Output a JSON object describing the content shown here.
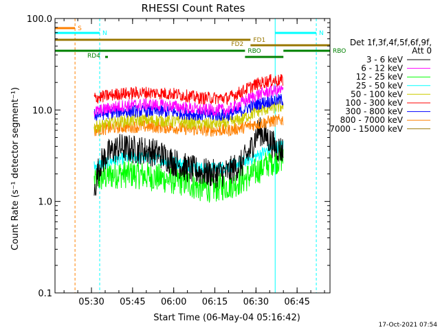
{
  "chart_data": {
    "type": "line",
    "title": "RHESSI Count Rates",
    "xlabel": "Start Time (06-May-04 05:16:42)",
    "ylabel": "Count Rate (s⁻¹ detector segment⁻¹)",
    "y_scale": "log",
    "ylim": [
      0.1,
      100
    ],
    "xlim": [
      "05:16:42",
      "06:57:00"
    ],
    "x_ticks": [
      "05:30",
      "05:45",
      "06:00",
      "06:15",
      "06:30",
      "06:45"
    ],
    "y_ticks": [
      "0.1",
      "1.0",
      "10.0",
      "100.0"
    ],
    "grid": false,
    "legend_position": "right",
    "legend_header": [
      "Det 1f,3f,4f,5f,6f,9f,",
      "Att 0"
    ],
    "series": [
      {
        "name": "3 - 6 keV",
        "color": "#000000",
        "t": [
          "05:31",
          "05:33",
          "05:36",
          "05:40",
          "05:45",
          "05:50",
          "05:55",
          "06:00",
          "06:05",
          "06:10",
          "06:15",
          "06:20",
          "06:25",
          "06:28",
          "06:31",
          "06:34",
          "06:37",
          "06:40"
        ],
        "values": [
          1.2,
          2.5,
          3.3,
          3.9,
          3.7,
          3.6,
          3.3,
          2.7,
          2.3,
          2.1,
          2.0,
          2.1,
          2.6,
          3.6,
          6.0,
          5.0,
          3.9,
          3.6
        ]
      },
      {
        "name": "6 - 12 keV",
        "color": "#ff00ff",
        "t": [
          "05:31",
          "05:40",
          "05:50",
          "06:00",
          "06:10",
          "06:20",
          "06:25",
          "06:30",
          "06:35",
          "06:40"
        ],
        "values": [
          9.5,
          11.0,
          11.5,
          11.0,
          10.0,
          10.0,
          12.0,
          14.5,
          16.0,
          16.5
        ]
      },
      {
        "name": "12 - 25 keV",
        "color": "#00ff00",
        "t": [
          "05:31",
          "05:36",
          "05:40",
          "05:45",
          "05:50",
          "05:55",
          "06:00",
          "06:05",
          "06:10",
          "06:15",
          "06:20",
          "06:25",
          "06:30",
          "06:35",
          "06:40"
        ],
        "values": [
          1.7,
          1.9,
          2.0,
          2.0,
          1.9,
          1.8,
          1.7,
          1.6,
          1.4,
          1.4,
          1.5,
          1.7,
          2.1,
          2.7,
          3.0
        ]
      },
      {
        "name": "25 - 50 keV",
        "color": "#00ffff",
        "t": [
          "05:31",
          "05:36",
          "05:40",
          "05:45",
          "05:50",
          "05:55",
          "06:00",
          "06:05",
          "06:10",
          "06:15",
          "06:20",
          "06:25",
          "06:30",
          "06:35",
          "06:40"
        ],
        "values": [
          2.4,
          2.7,
          2.9,
          3.0,
          3.0,
          2.9,
          2.7,
          2.5,
          2.3,
          2.3,
          2.4,
          2.7,
          3.1,
          3.7,
          4.1
        ]
      },
      {
        "name": "50 - 100 keV",
        "color": "#cccc00",
        "t": [
          "05:31",
          "05:40",
          "05:50",
          "06:00",
          "06:10",
          "06:20",
          "06:25",
          "06:30",
          "06:35",
          "06:40"
        ],
        "values": [
          6.5,
          7.5,
          7.8,
          7.5,
          7.0,
          7.2,
          8.0,
          9.5,
          10.5,
          11.0
        ]
      },
      {
        "name": "100 - 300 keV",
        "color": "#ff0000",
        "t": [
          "05:31",
          "05:40",
          "05:50",
          "06:00",
          "06:10",
          "06:20",
          "06:25",
          "06:30",
          "06:35",
          "06:40"
        ],
        "values": [
          13.5,
          15.0,
          15.5,
          15.0,
          13.5,
          13.5,
          16.0,
          19.0,
          21.0,
          21.0
        ]
      },
      {
        "name": "300 - 800 keV",
        "color": "#0000ff",
        "t": [
          "05:31",
          "05:40",
          "05:50",
          "06:00",
          "06:10",
          "06:20",
          "06:25",
          "06:30",
          "06:35",
          "06:40"
        ],
        "values": [
          8.8,
          9.6,
          9.8,
          9.5,
          8.8,
          8.8,
          10.0,
          11.5,
          12.5,
          13.0
        ]
      },
      {
        "name": "800 - 7000 keV",
        "color": "#ff8000",
        "t": [
          "05:31",
          "05:40",
          "05:50",
          "06:00",
          "06:10",
          "06:20",
          "06:25",
          "06:30",
          "06:35",
          "06:40"
        ],
        "values": [
          6.0,
          6.5,
          6.6,
          6.4,
          6.0,
          6.0,
          6.4,
          7.0,
          7.5,
          7.8
        ]
      },
      {
        "name": "7000 - 15000 keV",
        "color": "#997700",
        "t": [],
        "values": []
      }
    ],
    "annotations": [
      {
        "label": "S",
        "color": "#ff8000",
        "t_start": "05:16:42",
        "t_end": "05:24"
      },
      {
        "label": "N",
        "color": "#00ffff",
        "t_start": "05:16:42",
        "t_end": "05:33"
      },
      {
        "label": "N",
        "color": "#00ffff",
        "t_start": "06:37",
        "t_end": "06:52"
      },
      {
        "label": "FD1",
        "color": "#997700",
        "t_start": "05:16:42",
        "t_end": "06:28"
      },
      {
        "label": "FD2",
        "color": "#997700",
        "t_start": "06:28",
        "t_end": "06:57"
      },
      {
        "label": "RBO",
        "color": "#008000",
        "t_start": "05:16:42",
        "t_end": "06:26"
      },
      {
        "label": "RBO",
        "color": "#008000",
        "t_start": "06:40",
        "t_end": "06:57"
      },
      {
        "label": "RD4",
        "color": "#008000",
        "t_start": "05:35",
        "t_end": "05:36"
      },
      {
        "label": "",
        "color": "#008000",
        "t_start": "06:26",
        "t_end": "06:40"
      }
    ],
    "vlines": [
      {
        "t": "05:16:42",
        "color": "#00ffff",
        "style": "solid"
      },
      {
        "t": "05:24",
        "color": "#ff8000",
        "style": "dashed"
      },
      {
        "t": "05:33",
        "color": "#00ffff",
        "style": "dashed"
      },
      {
        "t": "06:37",
        "color": "#00ffff",
        "style": "solid"
      },
      {
        "t": "06:52",
        "color": "#00ffff",
        "style": "dashed"
      }
    ]
  },
  "footer": {
    "timestamp": "17-Oct-2021 07:54"
  }
}
